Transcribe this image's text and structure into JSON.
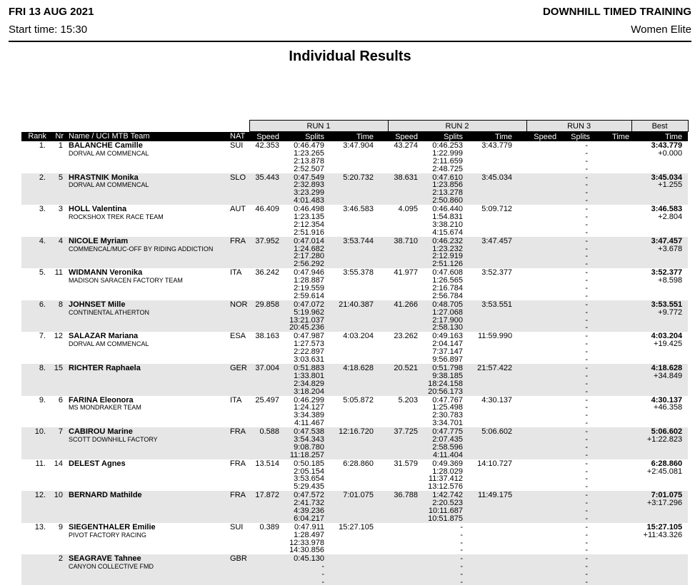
{
  "header": {
    "date": "FRI 13 AUG 2021",
    "start_time": "Start time: 15:30",
    "event": "DOWNHILL TIMED TRAINING",
    "category": "Women Elite"
  },
  "title": "Individual Results",
  "table": {
    "group_headers": {
      "run1": "RUN 1",
      "run2": "RUN 2",
      "run3": "RUN 3",
      "best": "Best"
    },
    "columns": {
      "rank": "Rank",
      "nr": "Nr",
      "name": "Name / UCI MTB Team",
      "nat": "NAT",
      "speed": "Speed",
      "splits": "Splits",
      "time": "Time",
      "best_time": "Time"
    },
    "colors": {
      "header_bar_bg": "#000000",
      "header_bar_text": "#ffffff",
      "row_alt_bg": "#e6e6e6",
      "group_box_bg": "#e2e2e2"
    },
    "rows": [
      {
        "rank": "1.",
        "nr": "1",
        "name": "BALANCHE Camille",
        "team": "DORVAL AM COMMENCAL",
        "nat": "SUI",
        "run1": {
          "speed": "42.353",
          "splits": [
            "0:46.479",
            "1:23.265",
            "2:13.878",
            "2:52.507"
          ],
          "time": "3:47.904"
        },
        "run2": {
          "speed": "43.274",
          "splits": [
            "0:46.253",
            "1:22.999",
            "2:11.659",
            "2:48.725"
          ],
          "time": "3:43.779"
        },
        "run3": {
          "speed": "",
          "splits": [
            "-",
            "-",
            "-",
            "-"
          ],
          "time": ""
        },
        "best": {
          "time": "3:43.779",
          "diff": "+0.000"
        }
      },
      {
        "rank": "2.",
        "nr": "5",
        "name": "HRASTNIK Monika",
        "team": "DORVAL AM COMMENCAL",
        "nat": "SLO",
        "run1": {
          "speed": "35.443",
          "splits": [
            "0:47.549",
            "2:32.893",
            "3:23.299",
            "4:01.483"
          ],
          "time": "5:20.732"
        },
        "run2": {
          "speed": "38.631",
          "splits": [
            "0:47.610",
            "1:23.856",
            "2:13.278",
            "2:50.860"
          ],
          "time": "3:45.034"
        },
        "run3": {
          "speed": "",
          "splits": [
            "-",
            "-",
            "-",
            "-"
          ],
          "time": ""
        },
        "best": {
          "time": "3:45.034",
          "diff": "+1.255"
        }
      },
      {
        "rank": "3.",
        "nr": "3",
        "name": "HOLL Valentina",
        "team": "ROCKSHOX TREK RACE TEAM",
        "nat": "AUT",
        "run1": {
          "speed": "46.409",
          "splits": [
            "0:46.498",
            "1:23.135",
            "2:12.354",
            "2:51.916"
          ],
          "time": "3:46.583"
        },
        "run2": {
          "speed": "4.095",
          "splits": [
            "0:46.440",
            "1:54.831",
            "3:38.210",
            "4:15.674"
          ],
          "time": "5:09.712"
        },
        "run3": {
          "speed": "",
          "splits": [
            "-",
            "-",
            "-",
            "-"
          ],
          "time": ""
        },
        "best": {
          "time": "3:46.583",
          "diff": "+2.804"
        }
      },
      {
        "rank": "4.",
        "nr": "4",
        "name": "NICOLE Myriam",
        "team": "COMMENCAL/MUC-OFF BY RIDING ADDICTION",
        "nat": "FRA",
        "run1": {
          "speed": "37.952",
          "splits": [
            "0:47.014",
            "1:24.682",
            "2:17.280",
            "2:56.292"
          ],
          "time": "3:53.744"
        },
        "run2": {
          "speed": "38.710",
          "splits": [
            "0:46.232",
            "1:23.232",
            "2:12.919",
            "2:51.126"
          ],
          "time": "3:47.457"
        },
        "run3": {
          "speed": "",
          "splits": [
            "-",
            "-",
            "-",
            "-"
          ],
          "time": ""
        },
        "best": {
          "time": "3:47.457",
          "diff": "+3.678"
        }
      },
      {
        "rank": "5.",
        "nr": "11",
        "name": "WIDMANN Veronika",
        "team": "MADISON SARACEN FACTORY TEAM",
        "nat": "ITA",
        "run1": {
          "speed": "36.242",
          "splits": [
            "0:47.946",
            "1:28.887",
            "2:19.559",
            "2:59.614"
          ],
          "time": "3:55.378"
        },
        "run2": {
          "speed": "41.977",
          "splits": [
            "0:47.608",
            "1:26.565",
            "2:16.784",
            "2:56.784"
          ],
          "time": "3:52.377"
        },
        "run3": {
          "speed": "",
          "splits": [
            "-",
            "-",
            "-",
            "-"
          ],
          "time": ""
        },
        "best": {
          "time": "3:52.377",
          "diff": "+8.598"
        }
      },
      {
        "rank": "6.",
        "nr": "8",
        "name": "JOHNSET Mille",
        "team": "CONTINENTAL ATHERTON",
        "nat": "NOR",
        "run1": {
          "speed": "29.858",
          "splits": [
            "0:47.072",
            "5:19.962",
            "13:21.037",
            "20:45.236"
          ],
          "time": "21:40.387"
        },
        "run2": {
          "speed": "41.266",
          "splits": [
            "0:48.705",
            "1:27.068",
            "2:17.900",
            "2:58.130"
          ],
          "time": "3:53.551"
        },
        "run3": {
          "speed": "",
          "splits": [
            "-",
            "-",
            "-",
            "-"
          ],
          "time": ""
        },
        "best": {
          "time": "3:53.551",
          "diff": "+9.772"
        }
      },
      {
        "rank": "7.",
        "nr": "12",
        "name": "SALAZAR Mariana",
        "team": "DORVAL AM COMMENCAL",
        "nat": "ESA",
        "run1": {
          "speed": "38.163",
          "splits": [
            "0:47.987",
            "1:27.573",
            "2:22.897",
            "3:03.631"
          ],
          "time": "4:03.204"
        },
        "run2": {
          "speed": "23.262",
          "splits": [
            "0:49.163",
            "2:04.147",
            "7:37.147",
            "9:56.897"
          ],
          "time": "11:59.990"
        },
        "run3": {
          "speed": "",
          "splits": [
            "-",
            "-",
            "-",
            "-"
          ],
          "time": ""
        },
        "best": {
          "time": "4:03.204",
          "diff": "+19.425"
        }
      },
      {
        "rank": "8.",
        "nr": "15",
        "name": "RICHTER Raphaela",
        "team": "",
        "nat": "GER",
        "run1": {
          "speed": "37.004",
          "splits": [
            "0:51.883",
            "1:33.801",
            "2:34.829",
            "3:18.204"
          ],
          "time": "4:18.628"
        },
        "run2": {
          "speed": "20.521",
          "splits": [
            "0:51.798",
            "9:38.185",
            "18:24.158",
            "20:56.173"
          ],
          "time": "21:57.422"
        },
        "run3": {
          "speed": "",
          "splits": [
            "-",
            "-",
            "-",
            "-"
          ],
          "time": ""
        },
        "best": {
          "time": "4:18.628",
          "diff": "+34.849"
        }
      },
      {
        "rank": "9.",
        "nr": "6",
        "name": "FARINA Eleonora",
        "team": "MS MONDRAKER TEAM",
        "nat": "ITA",
        "run1": {
          "speed": "25.497",
          "splits": [
            "0:46.299",
            "1:24.127",
            "3:34.389",
            "4:11.467"
          ],
          "time": "5:05.872"
        },
        "run2": {
          "speed": "5.203",
          "splits": [
            "0:47.767",
            "1:25.498",
            "2:30.783",
            "3:34.701"
          ],
          "time": "4:30.137"
        },
        "run3": {
          "speed": "",
          "splits": [
            "-",
            "-",
            "-",
            "-"
          ],
          "time": ""
        },
        "best": {
          "time": "4:30.137",
          "diff": "+46.358"
        }
      },
      {
        "rank": "10.",
        "nr": "7",
        "name": "CABIROU Marine",
        "team": "SCOTT DOWNHILL FACTORY",
        "nat": "FRA",
        "run1": {
          "speed": "0.588",
          "splits": [
            "0:47.538",
            "3:54.343",
            "9:08.780",
            "11:18.257"
          ],
          "time": "12:16.720"
        },
        "run2": {
          "speed": "37.725",
          "splits": [
            "0:47.775",
            "2:07.435",
            "2:58.596",
            "4:11.404"
          ],
          "time": "5:06.602"
        },
        "run3": {
          "speed": "",
          "splits": [
            "-",
            "-",
            "-",
            "-"
          ],
          "time": ""
        },
        "best": {
          "time": "5:06.602",
          "diff": "+1:22.823"
        }
      },
      {
        "rank": "11.",
        "nr": "14",
        "name": "DELEST Agnes",
        "team": "",
        "nat": "FRA",
        "run1": {
          "speed": "13.514",
          "splits": [
            "0:50.185",
            "2:05.154",
            "3:53.654",
            "5:29.435"
          ],
          "time": "6:28.860"
        },
        "run2": {
          "speed": "31.579",
          "splits": [
            "0:49.369",
            "1:28.029",
            "11:37.412",
            "13:12.576"
          ],
          "time": "14:10.727"
        },
        "run3": {
          "speed": "",
          "splits": [
            "-",
            "-",
            "-",
            "-"
          ],
          "time": ""
        },
        "best": {
          "time": "6:28.860",
          "diff": "+2:45.081"
        }
      },
      {
        "rank": "12.",
        "nr": "10",
        "name": "BERNARD Mathilde",
        "team": "",
        "nat": "FRA",
        "run1": {
          "speed": "17.872",
          "splits": [
            "0:47.572",
            "2:41.732",
            "4:39.236",
            "6:04.217"
          ],
          "time": "7:01.075"
        },
        "run2": {
          "speed": "36.788",
          "splits": [
            "1:42.742",
            "2:20.523",
            "10:11.687",
            "10:51.875"
          ],
          "time": "11:49.175"
        },
        "run3": {
          "speed": "",
          "splits": [
            "-",
            "-",
            "-",
            "-"
          ],
          "time": ""
        },
        "best": {
          "time": "7:01.075",
          "diff": "+3:17.296"
        }
      },
      {
        "rank": "13.",
        "nr": "9",
        "name": "SIEGENTHALER Emilie",
        "team": "PIVOT FACTORY RACING",
        "nat": "SUI",
        "run1": {
          "speed": "0.389",
          "splits": [
            "0:47.911",
            "1:28.497",
            "12:33.978",
            "14:30.856"
          ],
          "time": "15:27.105"
        },
        "run2": {
          "speed": "",
          "splits": [
            "-",
            "-",
            "-",
            "-"
          ],
          "time": ""
        },
        "run3": {
          "speed": "",
          "splits": [
            "-",
            "-",
            "-",
            "-"
          ],
          "time": ""
        },
        "best": {
          "time": "15:27.105",
          "diff": "+11:43.326"
        }
      },
      {
        "rank": "",
        "nr": "2",
        "name": "SEAGRAVE Tahnee",
        "team": "CANYON COLLECTIVE FMD",
        "nat": "GBR",
        "run1": {
          "speed": "",
          "splits": [
            "0:45.130",
            "-",
            "-",
            "-"
          ],
          "time": ""
        },
        "run2": {
          "speed": "",
          "splits": [
            "-",
            "-",
            "-",
            "-"
          ],
          "time": ""
        },
        "run3": {
          "speed": "",
          "splits": [
            "-",
            "-",
            "-",
            "-"
          ],
          "time": ""
        },
        "best": {
          "time": "",
          "diff": ""
        }
      }
    ]
  }
}
